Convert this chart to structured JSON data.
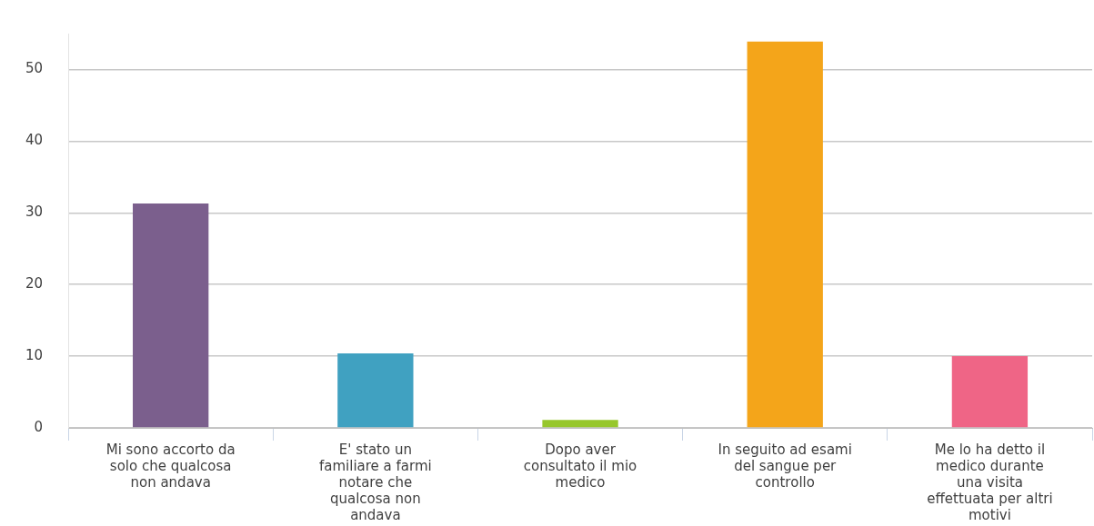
{
  "chart_data": {
    "type": "bar",
    "categories": [
      "Mi sono accorto da solo che qualcosa non andava",
      "E' stato un familiare a farmi notare che qualcosa non andava",
      "Dopo aver consultato il mio medico",
      "In seguito ad esami del sangue per controllo",
      "Me lo ha detto il medico durante una visita effettuata per altri motivi"
    ],
    "values": [
      31.3,
      10.4,
      1.1,
      53.9,
      10.0
    ],
    "colors": [
      "#7b5f8d",
      "#40a1c1",
      "#97c72c",
      "#f4a51a",
      "#ef6586"
    ],
    "ylim": [
      0,
      55
    ],
    "yticks": [
      0,
      10,
      20,
      30,
      40,
      50
    ],
    "grid": "y",
    "legend": false
  }
}
